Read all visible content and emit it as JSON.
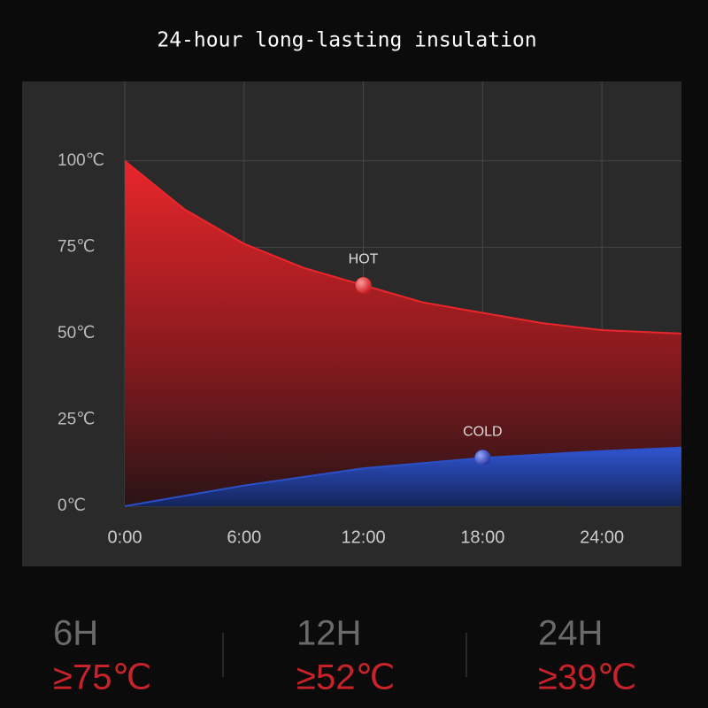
{
  "chart_data": {
    "type": "area",
    "title": "24-hour long-lasting insulation",
    "x": [
      0,
      3,
      6,
      9,
      12,
      15,
      18,
      21,
      24,
      28
    ],
    "series": [
      {
        "name": "HOT",
        "color": "#e8262b",
        "values": [
          100,
          86,
          76,
          69,
          64,
          59,
          56,
          53,
          51,
          50
        ]
      },
      {
        "name": "COLD",
        "color": "#2a4fc8",
        "values": [
          0,
          3,
          6,
          8.5,
          11,
          12.5,
          14,
          15,
          16,
          17
        ]
      }
    ],
    "markers": [
      {
        "label": "HOT",
        "x": 12,
        "y": 64,
        "color": "#e8262b"
      },
      {
        "label": "COLD",
        "x": 18,
        "y": 14,
        "color": "#2a4fc8"
      }
    ],
    "xlim": [
      0,
      28
    ],
    "ylim": [
      0,
      123
    ],
    "xticks": [
      {
        "value": 0,
        "label": "0:00"
      },
      {
        "value": 6,
        "label": "6:00"
      },
      {
        "value": 12,
        "label": "12:00"
      },
      {
        "value": 18,
        "label": "18:00"
      },
      {
        "value": 24,
        "label": "24:00"
      }
    ],
    "yticks": [
      {
        "value": 0,
        "label": "0℃"
      },
      {
        "value": 25,
        "label": "25℃"
      },
      {
        "value": 50,
        "label": "50℃"
      },
      {
        "value": 75,
        "label": "75℃"
      },
      {
        "value": 100,
        "label": "100℃"
      }
    ],
    "grid": true
  },
  "stats": [
    {
      "hours": "6H",
      "temp": "≥75℃"
    },
    {
      "hours": "12H",
      "temp": "≥52℃"
    },
    {
      "hours": "24H",
      "temp": "≥39℃"
    }
  ]
}
